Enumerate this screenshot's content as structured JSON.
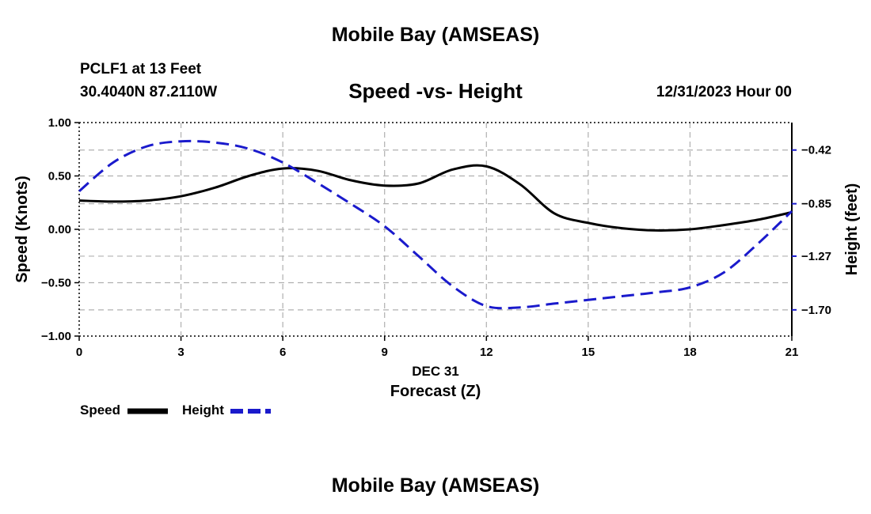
{
  "header": {
    "title": "Mobile Bay (AMSEAS)",
    "station": "PCLF1 at 13 Feet",
    "coordinates": "30.4040N  87.2110W",
    "chart_title": "Speed -vs- Height",
    "datetime": "12/31/2023 Hour 00"
  },
  "footer": {
    "title": "Mobile Bay (AMSEAS)"
  },
  "colors": {
    "speed": "#000000",
    "height": "#1a1acc",
    "grid": "#b0b0b0"
  },
  "chart_data": {
    "type": "line",
    "title": "Speed -vs- Height",
    "xlabel": "Forecast (Z)",
    "xlabel_date": "DEC 31",
    "ylabel": "Speed (Knots)",
    "y2label": "Height (feet)",
    "xlim": [
      0,
      21
    ],
    "ylim": [
      -1.0,
      1.0
    ],
    "y2lim": [
      -1.91,
      -0.2
    ],
    "x_ticks": [
      0,
      3,
      6,
      9,
      12,
      15,
      18,
      21
    ],
    "x_tick_labels": [
      "0",
      "3",
      "6",
      "9",
      "12",
      "15",
      "18",
      "21"
    ],
    "y_ticks": [
      -1.0,
      -0.5,
      0.0,
      0.5,
      1.0
    ],
    "y_tick_labels": [
      "−1.00",
      "−0.50",
      "0.00",
      "0.50",
      "1.00"
    ],
    "y2_ticks": [
      -0.42,
      -0.85,
      -1.27,
      -1.7
    ],
    "y2_tick_labels": [
      "−0.42",
      "−0.85",
      "−1.27",
      "−1.70"
    ],
    "grid": true,
    "series": [
      {
        "name": "Speed",
        "axis": "left",
        "style": "solid",
        "x": [
          0,
          1,
          2,
          3,
          4,
          5,
          6,
          7,
          8,
          9,
          10,
          11,
          12,
          13,
          14,
          15,
          16,
          17,
          18,
          19,
          20,
          21
        ],
        "values": [
          0.27,
          0.26,
          0.27,
          0.31,
          0.39,
          0.5,
          0.57,
          0.55,
          0.46,
          0.41,
          0.43,
          0.56,
          0.59,
          0.42,
          0.15,
          0.06,
          0.01,
          -0.01,
          0.0,
          0.04,
          0.09,
          0.16
        ]
      },
      {
        "name": "Height",
        "axis": "right",
        "style": "dashed",
        "x": [
          0,
          1,
          2,
          3,
          4,
          5,
          6,
          7,
          8,
          9,
          10,
          11,
          12,
          13,
          14,
          15,
          16,
          17,
          18,
          19,
          20,
          21
        ],
        "values": [
          -0.75,
          -0.52,
          -0.39,
          -0.35,
          -0.36,
          -0.41,
          -0.52,
          -0.68,
          -0.85,
          -1.03,
          -1.27,
          -1.51,
          -1.67,
          -1.68,
          -1.65,
          -1.62,
          -1.59,
          -1.56,
          -1.52,
          -1.4,
          -1.17,
          -0.91
        ]
      }
    ],
    "legend": [
      {
        "label": "Speed",
        "series": "Speed"
      },
      {
        "label": "Height",
        "series": "Height"
      }
    ],
    "legend_position": "bottom-left"
  }
}
